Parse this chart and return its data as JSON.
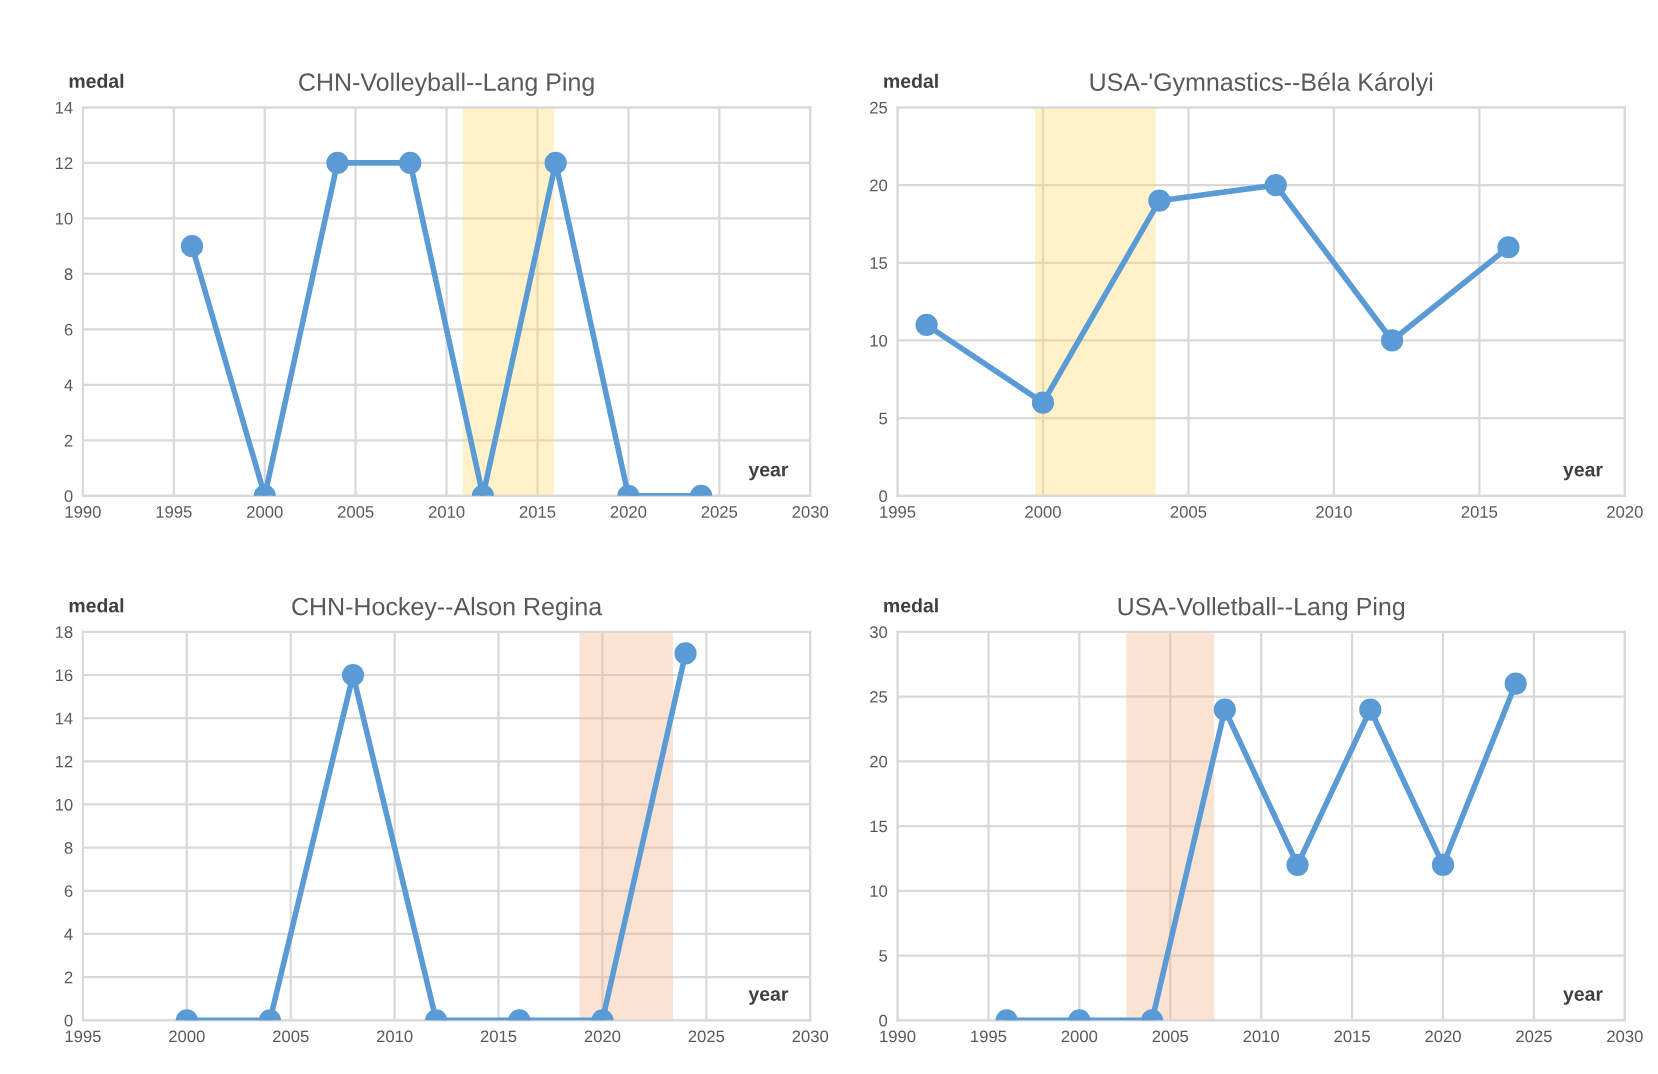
{
  "chart_data": [
    {
      "type": "line",
      "title": "CHN-Volleyball--Lang Ping",
      "xlabel": "year",
      "ylabel": "medal",
      "marker": "circle",
      "grid": true,
      "x": [
        1996,
        2000,
        2004,
        2008,
        2012,
        2016,
        2020,
        2024
      ],
      "series": [
        {
          "color": "#5b9bd5",
          "values": [
            9,
            0,
            12,
            12,
            0,
            12,
            0,
            0
          ]
        }
      ],
      "xlim": [
        1990,
        2030
      ],
      "xticks": [
        1990,
        1995,
        2000,
        2005,
        2010,
        2015,
        2020,
        2025,
        2030
      ],
      "ylim": [
        0,
        14
      ],
      "yticks": [
        0,
        2,
        4,
        6,
        8,
        10,
        12,
        14
      ],
      "bands": [
        {
          "axis": "x",
          "from": 2011,
          "to": 2015.8,
          "color": "#ffd966"
        }
      ]
    },
    {
      "type": "line",
      "title": "USA-'Gymnastics--Béla Károlyi",
      "xlabel": "year",
      "ylabel": "medal",
      "marker": "circle",
      "grid": true,
      "x": [
        1996,
        2000,
        2004,
        2008,
        2012,
        2016
      ],
      "series": [
        {
          "color": "#5b9bd5",
          "values": [
            11,
            6,
            19,
            20,
            10,
            16
          ]
        }
      ],
      "xlim": [
        1995,
        2020
      ],
      "xticks": [
        1995,
        2000,
        2005,
        2010,
        2015,
        2020
      ],
      "ylim": [
        0,
        25
      ],
      "yticks": [
        0,
        5,
        10,
        15,
        20,
        25
      ],
      "bands": [
        {
          "axis": "x",
          "from": 1999.8,
          "to": 2003.8,
          "color": "#ffd966"
        }
      ]
    },
    {
      "type": "line",
      "title": "CHN-Hockey--Alson Regina",
      "xlabel": "year",
      "ylabel": "medal",
      "marker": "circle",
      "grid": true,
      "x": [
        2000,
        2004,
        2008,
        2012,
        2016,
        2020,
        2024
      ],
      "series": [
        {
          "color": "#5b9bd5",
          "values": [
            0,
            0,
            16,
            0,
            0,
            0,
            17
          ]
        }
      ],
      "xlim": [
        1995,
        2030
      ],
      "xticks": [
        1995,
        2000,
        2005,
        2010,
        2015,
        2020,
        2025,
        2030
      ],
      "ylim": [
        0,
        18
      ],
      "yticks": [
        0,
        2,
        4,
        6,
        8,
        10,
        12,
        14,
        16,
        18
      ],
      "bands": [
        {
          "axis": "x",
          "from": 2019,
          "to": 2023.3,
          "color": "#f4b183"
        }
      ]
    },
    {
      "type": "line",
      "title": "USA-Volletball--Lang Ping",
      "xlabel": "year",
      "ylabel": "medal",
      "marker": "circle",
      "grid": true,
      "x": [
        1996,
        2000,
        2004,
        2008,
        2012,
        2016,
        2020,
        2024
      ],
      "series": [
        {
          "color": "#5b9bd5",
          "values": [
            0,
            0,
            0,
            24,
            12,
            24,
            12,
            26
          ]
        }
      ],
      "xlim": [
        1990,
        2030
      ],
      "xticks": [
        1990,
        1995,
        2000,
        2005,
        2010,
        2015,
        2020,
        2025,
        2030
      ],
      "ylim": [
        0,
        30
      ],
      "yticks": [
        0,
        5,
        10,
        15,
        20,
        25,
        30
      ],
      "bands": [
        {
          "axis": "x",
          "from": 2002.7,
          "to": 2007.3,
          "color": "#f4b183"
        }
      ]
    }
  ]
}
